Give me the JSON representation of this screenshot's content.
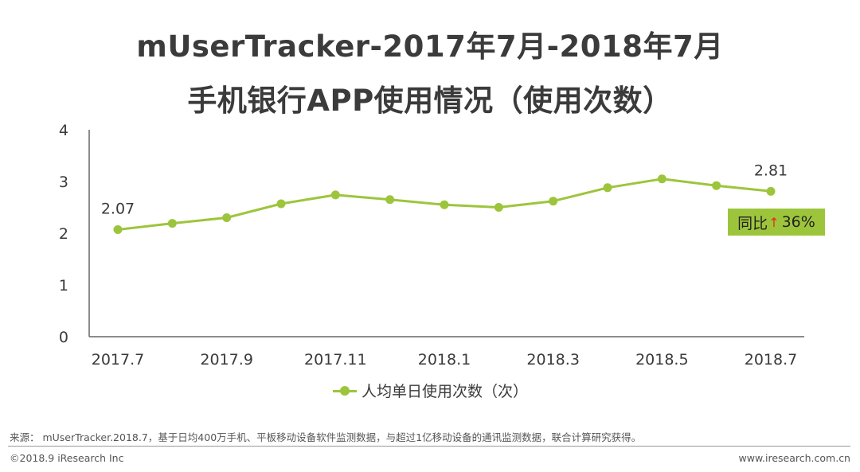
{
  "title_line1": "mUserTracker-2017年7月-2018年7月",
  "title_line2": "手机银行APP使用情况（使用次数）",
  "colors": {
    "series": "#9dc53c",
    "axis": "#666666",
    "text": "#3a3a3a",
    "yoy_arrow": "#e03020"
  },
  "chart_data": {
    "type": "line",
    "x": [
      "2017.7",
      "2017.8",
      "2017.9",
      "2017.10",
      "2017.11",
      "2017.12",
      "2018.1",
      "2018.2",
      "2018.3",
      "2018.4",
      "2018.5",
      "2018.6",
      "2018.7"
    ],
    "x_tick_labels": [
      "2017.7",
      "2017.9",
      "2017.11",
      "2018.1",
      "2018.3",
      "2018.5",
      "2018.7"
    ],
    "series": [
      {
        "name": "人均单日使用次数（次）",
        "values": [
          2.07,
          2.19,
          2.3,
          2.57,
          2.74,
          2.65,
          2.55,
          2.5,
          2.62,
          2.88,
          3.05,
          2.92,
          2.81
        ]
      }
    ],
    "data_labels": [
      {
        "x": "2017.7",
        "text": "2.07"
      },
      {
        "x": "2018.7",
        "text": "2.81"
      }
    ],
    "y_ticks": [
      "0",
      "1",
      "2",
      "3",
      "4"
    ],
    "ylim": [
      0,
      4
    ],
    "grid": false,
    "legend_position": "bottom",
    "annotation": {
      "label": "同比",
      "arrow": "↑",
      "value": "36%"
    }
  },
  "footer": {
    "source": "来源： mUserTracker.2018.7，基于日均400万手机、平板移动设备软件监测数据，与超过1亿移动设备的通讯监测数据，联合计算研究获得。",
    "copyright": "©2018.9 iResearch Inc",
    "website": "www.iresearch.com.cn"
  }
}
